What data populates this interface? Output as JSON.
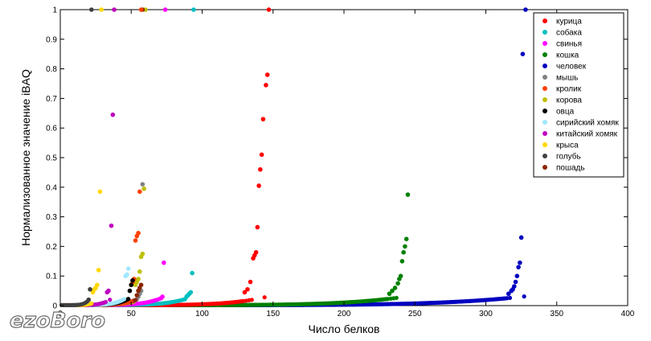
{
  "chart_data": {
    "type": "scatter",
    "xlabel": "Число белков",
    "ylabel": "Нормализованное значение iBAQ",
    "xlim": [
      0,
      400
    ],
    "ylim": [
      0,
      1
    ],
    "x_ticks": [
      "0",
      "50",
      "100",
      "150",
      "200",
      "250",
      "300",
      "350",
      "400"
    ],
    "y_ticks": [
      "0",
      "0.1",
      "0.2",
      "0.3",
      "0.4",
      "0.5",
      "0.6",
      "0.7",
      "0.8",
      "0.9",
      "1"
    ],
    "grid": false,
    "legend_position": "top-right",
    "series": [
      {
        "name": "курица",
        "color": "#ff0000",
        "n": 147,
        "points": [
          [
            147,
            1
          ],
          [
            146,
            0.78
          ],
          [
            145,
            0.745
          ],
          [
            143,
            0.63
          ],
          [
            142,
            0.51
          ],
          [
            141,
            0.46
          ],
          [
            140,
            0.405
          ],
          [
            139,
            0.265
          ],
          [
            138,
            0.18
          ],
          [
            137,
            0.17
          ],
          [
            136,
            0.16
          ],
          [
            134,
            0.08
          ],
          [
            132,
            0.055
          ],
          [
            130,
            0.045
          ]
        ]
      },
      {
        "name": "собака",
        "color": "#00bfbf",
        "n": 94,
        "points": [
          [
            94,
            1
          ],
          [
            93,
            0.11
          ],
          [
            92,
            0.045
          ],
          [
            91,
            0.04
          ],
          [
            90,
            0.035
          ],
          [
            89,
            0.03
          ]
        ]
      },
      {
        "name": "свинья",
        "color": "#ff00ff",
        "n": 74,
        "points": [
          [
            74,
            1
          ],
          [
            73,
            0.145
          ],
          [
            72,
            0.03
          ],
          [
            71,
            0.025
          ]
        ]
      },
      {
        "name": "кошка",
        "color": "#008000",
        "n": 245,
        "points": [
          [
            245,
            0.375
          ],
          [
            244,
            0.225
          ],
          [
            243,
            0.2
          ],
          [
            242,
            0.18
          ],
          [
            241,
            0.15
          ],
          [
            240,
            0.1
          ],
          [
            239,
            0.09
          ],
          [
            238,
            0.075
          ],
          [
            236,
            0.06
          ],
          [
            234,
            0.05
          ],
          [
            232,
            0.04
          ]
        ]
      },
      {
        "name": "человек",
        "color": "#0000c0",
        "n": 328,
        "points": [
          [
            328,
            1
          ],
          [
            326,
            0.85
          ],
          [
            325,
            0.23
          ],
          [
            324,
            0.145
          ],
          [
            323,
            0.13
          ],
          [
            322,
            0.1
          ],
          [
            321,
            0.08
          ],
          [
            320,
            0.065
          ],
          [
            319,
            0.055
          ],
          [
            318,
            0.05
          ],
          [
            316,
            0.04
          ]
        ]
      },
      {
        "name": "мышь",
        "color": "#808080",
        "n": 58,
        "points": [
          [
            58,
            0.41
          ],
          [
            57,
            0.05
          ],
          [
            56,
            0.04
          ],
          [
            55,
            0.03
          ]
        ]
      },
      {
        "name": "кролик",
        "color": "#ff4000",
        "n": 57,
        "points": [
          [
            57,
            1
          ],
          [
            56,
            0.385
          ],
          [
            55,
            0.245
          ],
          [
            54,
            0.235
          ],
          [
            53,
            0.22
          ],
          [
            52,
            0.09
          ],
          [
            51,
            0.08
          ]
        ]
      },
      {
        "name": "корова",
        "color": "#bfbf00",
        "n": 60,
        "points": [
          [
            60,
            1
          ],
          [
            59,
            0.395
          ],
          [
            58,
            0.175
          ],
          [
            57,
            0.165
          ],
          [
            56,
            0.115
          ],
          [
            55,
            0.09
          ],
          [
            54,
            0.08
          ],
          [
            53,
            0.07
          ]
        ]
      },
      {
        "name": "овца",
        "color": "#000000",
        "n": 51,
        "points": [
          [
            51,
            0.085
          ],
          [
            50,
            0.07
          ],
          [
            49,
            0.05
          ]
        ]
      },
      {
        "name": "сирийский хомяк",
        "color": "#a0e8ff",
        "n": 48,
        "points": [
          [
            48,
            0.125
          ],
          [
            47,
            0.105
          ],
          [
            46,
            0.1
          ]
        ]
      },
      {
        "name": "китайский хомяк",
        "color": "#c000c0",
        "n": 38,
        "points": [
          [
            38,
            1
          ],
          [
            37,
            0.645
          ],
          [
            36,
            0.27
          ],
          [
            34,
            0.05
          ],
          [
            33,
            0.045
          ]
        ]
      },
      {
        "name": "крыса",
        "color": "#ffd700",
        "n": 29,
        "points": [
          [
            29,
            1
          ],
          [
            28,
            0.385
          ],
          [
            27,
            0.12
          ],
          [
            26,
            0.07
          ],
          [
            25,
            0.06
          ],
          [
            24,
            0.055
          ],
          [
            23,
            0.045
          ]
        ]
      },
      {
        "name": "голубь",
        "color": "#404040",
        "n": 22,
        "points": [
          [
            22,
            1
          ],
          [
            21,
            0.055
          ],
          [
            20,
            0.02
          ]
        ]
      },
      {
        "name": "пошадь",
        "color": "#8b2500",
        "n": 58,
        "points": [
          [
            58,
            1
          ],
          [
            57,
            0.07
          ],
          [
            56,
            0.06
          ],
          [
            55,
            0.05
          ],
          [
            54,
            0.035
          ]
        ]
      }
    ]
  },
  "watermark": {
    "text": "ezoBoro"
  }
}
